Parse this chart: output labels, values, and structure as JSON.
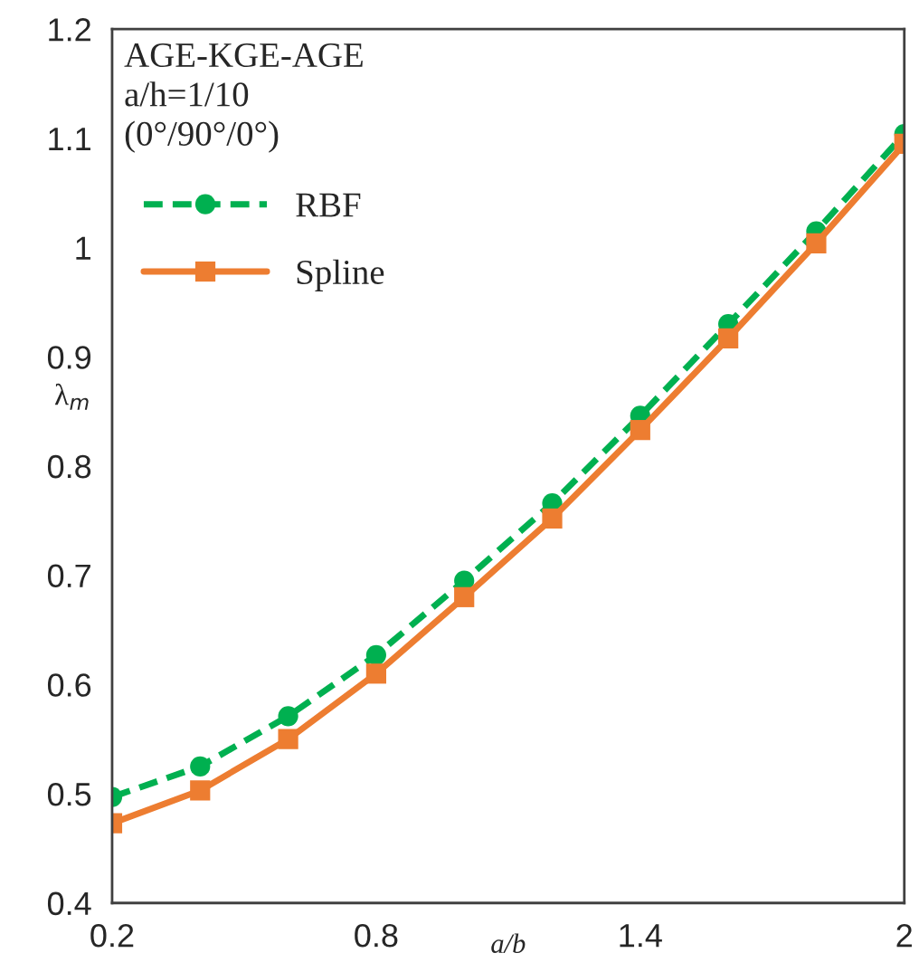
{
  "chart_data": {
    "type": "line",
    "xlabel": "a/b",
    "ylabel": "λ$_{m}$",
    "annotations": [
      "AGE-KGE-AGE",
      "a/h=1/10",
      "(0°/90°/0°)"
    ],
    "x": [
      0.2,
      0.4,
      0.6,
      0.8,
      1.0,
      1.2,
      1.4,
      1.6,
      1.8,
      2.0
    ],
    "series": [
      {
        "name": "RBF",
        "color": "#00b050",
        "marker": "circle",
        "line_style": "dashed",
        "values": [
          0.497,
          0.525,
          0.571,
          0.627,
          0.695,
          0.766,
          0.846,
          0.93,
          1.015,
          1.104
        ]
      },
      {
        "name": "Spline",
        "color": "#ed7d31",
        "marker": "square",
        "line_style": "solid",
        "values": [
          0.473,
          0.503,
          0.55,
          0.61,
          0.68,
          0.752,
          0.833,
          0.917,
          1.004,
          1.095
        ]
      }
    ],
    "xlim": [
      0.2,
      2
    ],
    "xticks": [
      0.2,
      0.8,
      1.4,
      2
    ],
    "ylim": [
      0.4,
      1.2
    ],
    "yticks": [
      0.4,
      0.5,
      0.6,
      0.7,
      0.8,
      0.9,
      1,
      1.1,
      1.2
    ],
    "grid": false,
    "legend": "top left"
  }
}
